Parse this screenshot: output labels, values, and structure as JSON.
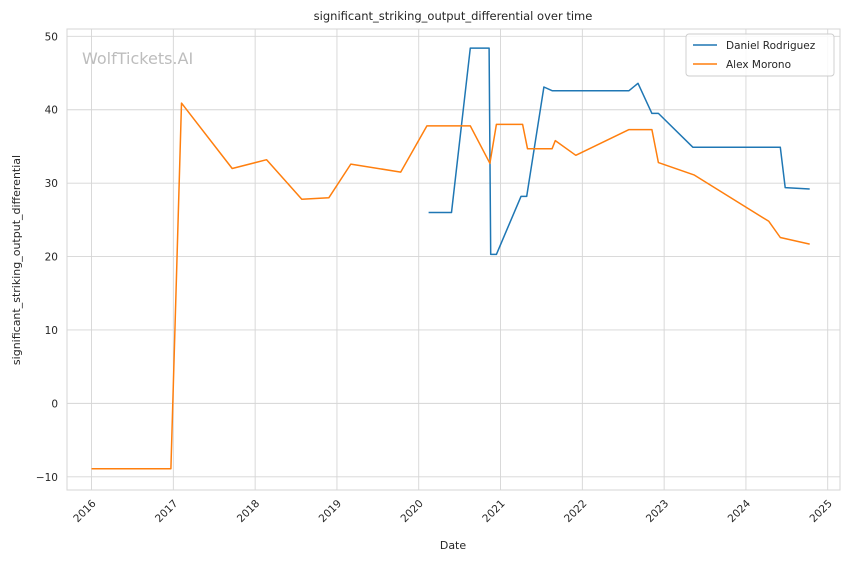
{
  "chart_data": {
    "type": "line",
    "title": "significant_striking_output_differential over time",
    "xlabel": "Date",
    "ylabel": "significant_striking_output_differential",
    "watermark": "WolfTickets.AI",
    "grid": true,
    "legend_position": "top-right",
    "xlim": [
      2015.7,
      2025.15
    ],
    "ylim": [
      -11.8,
      51
    ],
    "x_ticks": [
      2016,
      2017,
      2018,
      2019,
      2020,
      2021,
      2022,
      2023,
      2024,
      2025
    ],
    "y_ticks": [
      -10,
      0,
      10,
      20,
      30,
      40,
      50
    ],
    "series": [
      {
        "name": "Daniel Rodriguez",
        "color": "#1f77b4",
        "points": [
          [
            2020.12,
            26.0
          ],
          [
            2020.4,
            26.0
          ],
          [
            2020.63,
            48.4
          ],
          [
            2020.86,
            48.4
          ],
          [
            2020.88,
            20.3
          ],
          [
            2020.95,
            20.3
          ],
          [
            2021.25,
            28.2
          ],
          [
            2021.32,
            28.2
          ],
          [
            2021.53,
            43.1
          ],
          [
            2021.63,
            42.6
          ],
          [
            2022.57,
            42.6
          ],
          [
            2022.68,
            43.6
          ],
          [
            2022.85,
            39.5
          ],
          [
            2022.93,
            39.5
          ],
          [
            2023.35,
            34.9
          ],
          [
            2024.42,
            34.9
          ],
          [
            2024.48,
            29.4
          ],
          [
            2024.78,
            29.2
          ]
        ]
      },
      {
        "name": "Alex Morono",
        "color": "#ff7f0e",
        "points": [
          [
            2016.0,
            -8.9
          ],
          [
            2016.97,
            -8.9
          ],
          [
            2017.1,
            40.9
          ],
          [
            2017.72,
            32.0
          ],
          [
            2018.14,
            33.2
          ],
          [
            2018.57,
            27.8
          ],
          [
            2018.9,
            28.0
          ],
          [
            2019.17,
            32.6
          ],
          [
            2019.78,
            31.5
          ],
          [
            2020.1,
            37.8
          ],
          [
            2020.63,
            37.8
          ],
          [
            2020.87,
            32.7
          ],
          [
            2020.95,
            38.0
          ],
          [
            2021.27,
            38.0
          ],
          [
            2021.33,
            34.7
          ],
          [
            2021.63,
            34.7
          ],
          [
            2021.67,
            35.8
          ],
          [
            2021.92,
            33.8
          ],
          [
            2022.57,
            37.3
          ],
          [
            2022.85,
            37.3
          ],
          [
            2022.93,
            32.8
          ],
          [
            2023.37,
            31.1
          ],
          [
            2024.28,
            24.8
          ],
          [
            2024.42,
            22.6
          ],
          [
            2024.78,
            21.7
          ]
        ]
      }
    ]
  }
}
